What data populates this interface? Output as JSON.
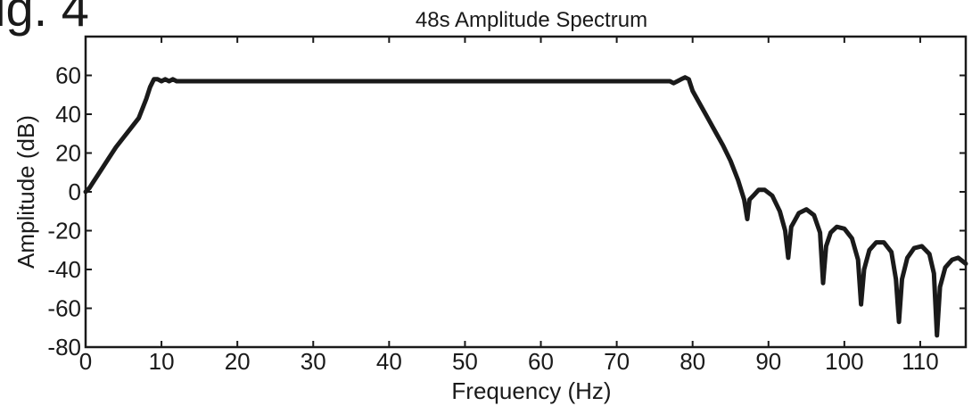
{
  "figure": {
    "label": "ig. 4"
  },
  "chart_data": {
    "type": "line",
    "title": "48s Amplitude Spectrum",
    "xlabel": "Frequency (Hz)",
    "ylabel": "Amplitude (dB)",
    "xlim": [
      0,
      116
    ],
    "ylim": [
      -80,
      80
    ],
    "xticks": [
      0,
      10,
      20,
      30,
      40,
      50,
      60,
      70,
      80,
      90,
      100,
      110
    ],
    "yticks": [
      -80,
      -60,
      -40,
      -20,
      0,
      20,
      40,
      60
    ],
    "grid": false,
    "line_color": "#1a1a1a",
    "series": [
      {
        "x": [
          0,
          0.5,
          1,
          2,
          3,
          4,
          5,
          6,
          7,
          8,
          8.5,
          9,
          9.5,
          10,
          10.5,
          11,
          11.5,
          12,
          20,
          30,
          40,
          50,
          60,
          70,
          76,
          77,
          77.5,
          78,
          78.5,
          79,
          79.5,
          80,
          81,
          82,
          83,
          84,
          85,
          86,
          86.8,
          87.2,
          87.5,
          88,
          88.7,
          89.5,
          90.5,
          91.5,
          92.2,
          92.6,
          93,
          94,
          95,
          96,
          96.8,
          97.2,
          97.6,
          98.2,
          99,
          100,
          101,
          101.8,
          102.2,
          102.6,
          103.3,
          104.2,
          105.2,
          106.2,
          106.8,
          107.2,
          107.6,
          108.3,
          109.2,
          110.2,
          111.2,
          111.8,
          112.2,
          112.6,
          113.3,
          114.2,
          115,
          116
        ],
        "y": [
          0,
          2,
          5,
          11,
          17,
          23,
          28,
          33,
          38,
          48,
          54,
          58,
          58,
          57,
          58,
          57,
          58,
          57,
          57,
          57,
          57,
          57,
          57,
          57,
          57,
          57,
          56,
          57,
          58,
          59,
          58,
          52,
          45,
          38,
          31,
          24,
          16,
          6,
          -4,
          -14,
          -4,
          -2,
          1,
          1,
          -2,
          -10,
          -20,
          -34,
          -18,
          -11,
          -9,
          -12,
          -21,
          -47,
          -28,
          -21,
          -18,
          -19,
          -24,
          -35,
          -58,
          -40,
          -30,
          -26,
          -26,
          -31,
          -45,
          -67,
          -45,
          -34,
          -29,
          -28,
          -32,
          -42,
          -74,
          -49,
          -39,
          -35,
          -34,
          -37
        ]
      }
    ]
  }
}
